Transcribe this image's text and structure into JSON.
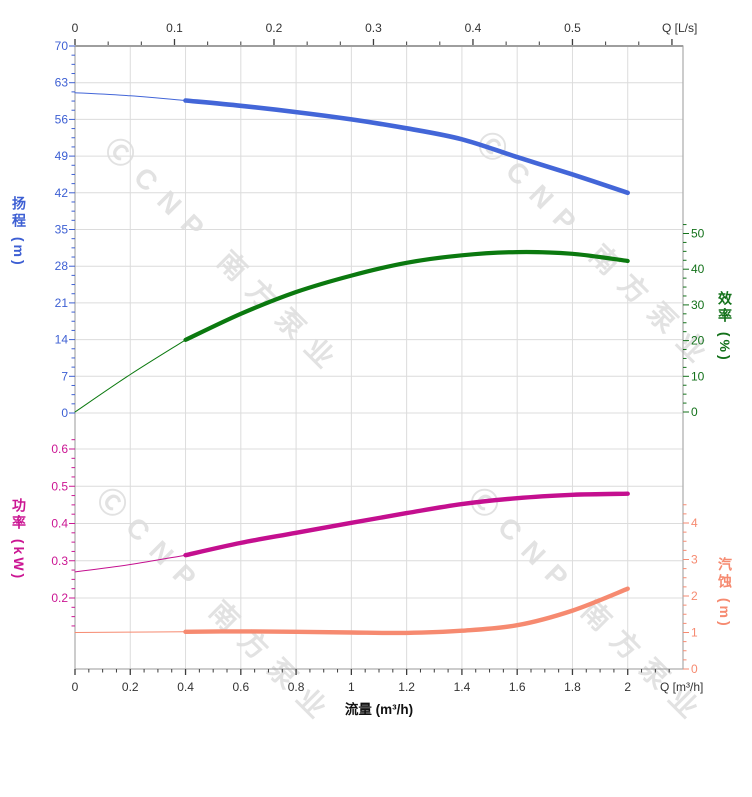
{
  "watermark": {
    "text": "ⒸCNP 南方泵业"
  },
  "chart_data": {
    "type": "line",
    "title": "",
    "x_axis_bottom": {
      "title": "流量 (m³/h)",
      "unit_label": "Q [m³/h]",
      "min": 0,
      "max": 2.2,
      "tick_labels": [
        "0",
        "0.2",
        "0.4",
        "0.6",
        "0.8",
        "1",
        "1.2",
        "1.4",
        "1.6",
        "1.8",
        "2"
      ],
      "color": "#333333"
    },
    "x_axis_top": {
      "unit_label": "Q [L/s]",
      "min": 0,
      "max": 0.611,
      "tick_labels": [
        "0",
        "0.1",
        "0.2",
        "0.3",
        "0.4",
        "0.5"
      ],
      "m3h_per_ls": 3.6,
      "color": "#333333"
    },
    "axes": {
      "head": {
        "title": "扬程 (m)",
        "color": "#3d5fd3",
        "min": 0,
        "max": 70,
        "tick_labels": [
          "0",
          "7",
          "14",
          "21",
          "28",
          "35",
          "42",
          "49",
          "56",
          "63",
          "70"
        ],
        "grid": true
      },
      "efficiency": {
        "title": "效率 (%)",
        "color": "#13711a",
        "min": 0,
        "max": 50,
        "tick_labels": [
          "0",
          "10",
          "20",
          "30",
          "40",
          "50"
        ],
        "grid": false
      },
      "power": {
        "title": "功率 (kW)",
        "color": "#cb1693",
        "min": 0.2,
        "max": 0.6,
        "tick_labels": [
          "0.2",
          "0.3",
          "0.4",
          "0.5",
          "0.6"
        ],
        "grid": true
      },
      "npsh": {
        "title": "汽蚀 (m)",
        "color": "#f68a70",
        "min": 0,
        "max": 4,
        "tick_labels": [
          "0",
          "1",
          "2",
          "3",
          "4"
        ],
        "grid": false
      }
    },
    "series": [
      {
        "name": "head",
        "axis": "head",
        "color": "#4366d8",
        "line_width": 4.6,
        "thin_until": 0.4,
        "x": [
          0,
          0.2,
          0.4,
          0.6,
          0.8,
          1,
          1.2,
          1.4,
          1.6,
          1.8,
          2
        ],
        "y": [
          61.1,
          60.5,
          59.6,
          58.6,
          57.4,
          56,
          54.3,
          52.2,
          48.8,
          45.5,
          42
        ]
      },
      {
        "name": "efficiency",
        "axis": "efficiency",
        "color": "#0b790f",
        "line_width": 4.2,
        "thin_until": 0.4,
        "x": [
          0,
          0.2,
          0.4,
          0.6,
          0.8,
          1,
          1.2,
          1.4,
          1.6,
          1.8,
          2
        ],
        "y": [
          0,
          10.5,
          20.2,
          27.5,
          33.6,
          38.2,
          41.8,
          43.9,
          44.8,
          44.3,
          42.3
        ]
      },
      {
        "name": "power",
        "axis": "power",
        "color": "#c40f8f",
        "line_width": 4.4,
        "thin_until": 0.4,
        "x": [
          0,
          0.2,
          0.4,
          0.6,
          0.8,
          1,
          1.2,
          1.4,
          1.6,
          1.8,
          2
        ],
        "y": [
          0.27,
          0.29,
          0.315,
          0.348,
          0.375,
          0.402,
          0.428,
          0.452,
          0.468,
          0.477,
          0.48
        ]
      },
      {
        "name": "npsh",
        "axis": "npsh",
        "color": "#f68a70",
        "line_width": 4.4,
        "thin_until": 0.4,
        "x": [
          0,
          0.2,
          0.4,
          0.6,
          0.8,
          1,
          1.2,
          1.4,
          1.6,
          1.8,
          2
        ],
        "y": [
          1,
          1.01,
          1.02,
          1.03,
          1.02,
          1,
          0.99,
          1.05,
          1.2,
          1.6,
          2.2
        ]
      }
    ],
    "layout_hints": {
      "grid": "on",
      "legend": "none"
    }
  }
}
